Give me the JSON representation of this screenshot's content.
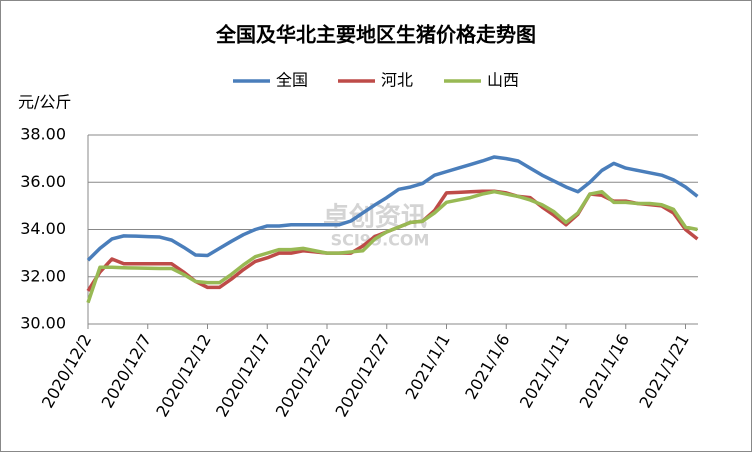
{
  "chart_data": {
    "type": "line",
    "title": "全国及华北主要地区生猪价格走势图",
    "ylabel": "元/公斤",
    "watermark": [
      "卓创资讯",
      "SCI99.COM"
    ],
    "categories": [
      "2020/12/2",
      null,
      null,
      null,
      null,
      "2020/12/7",
      null,
      null,
      null,
      null,
      "2020/12/12",
      null,
      null,
      null,
      null,
      "2020/12/17",
      null,
      null,
      null,
      null,
      "2020/12/22",
      null,
      null,
      null,
      null,
      "2020/12/27",
      null,
      null,
      null,
      null,
      "2021/1/1",
      null,
      null,
      null,
      null,
      "2021/1/6",
      null,
      null,
      null,
      null,
      "2021/1/11",
      null,
      null,
      null,
      null,
      "2021/1/16",
      null,
      null,
      null,
      null,
      "2021/1/21",
      null
    ],
    "series": [
      {
        "name": "全国",
        "color": "#4a7ebb",
        "values": [
          32.7,
          33.2,
          33.6,
          33.73,
          33.72,
          33.7,
          33.68,
          33.55,
          33.25,
          32.92,
          32.9,
          33.2,
          33.5,
          33.78,
          34.0,
          34.15,
          34.15,
          34.2,
          34.2,
          34.2,
          34.2,
          34.2,
          34.36,
          34.7,
          35.04,
          35.35,
          35.7,
          35.8,
          35.95,
          36.3,
          36.45,
          36.6,
          36.75,
          36.9,
          37.07,
          37.0,
          36.9,
          36.6,
          36.3,
          36.05,
          35.8,
          35.6,
          36.0,
          36.5,
          36.8,
          36.6,
          36.5,
          36.4,
          36.3,
          36.1,
          35.8,
          35.4
        ]
      },
      {
        "name": "河北",
        "color": "#be4b48",
        "values": [
          31.4,
          32.2,
          32.75,
          32.55,
          32.55,
          32.55,
          32.55,
          32.55,
          32.2,
          31.8,
          31.55,
          31.55,
          31.9,
          32.3,
          32.65,
          32.8,
          33.0,
          33.0,
          33.1,
          33.05,
          33.0,
          33.0,
          33.0,
          33.3,
          33.7,
          33.9,
          34.1,
          34.3,
          34.35,
          34.8,
          35.55,
          35.57,
          35.6,
          35.62,
          35.62,
          35.55,
          35.4,
          35.35,
          34.95,
          34.6,
          34.2,
          34.65,
          35.5,
          35.45,
          35.2,
          35.2,
          35.1,
          35.05,
          35.0,
          34.7,
          34.0,
          33.6
        ]
      },
      {
        "name": "山西",
        "color": "#98b954",
        "values": [
          30.9,
          32.4,
          32.4,
          32.38,
          32.37,
          32.36,
          32.35,
          32.35,
          32.1,
          31.8,
          31.75,
          31.75,
          32.1,
          32.5,
          32.85,
          33.0,
          33.15,
          33.15,
          33.2,
          33.1,
          33.0,
          33.0,
          33.05,
          33.1,
          33.6,
          33.9,
          34.1,
          34.3,
          34.35,
          34.7,
          35.15,
          35.25,
          35.35,
          35.5,
          35.6,
          35.5,
          35.4,
          35.25,
          35.05,
          34.75,
          34.3,
          34.7,
          35.5,
          35.6,
          35.15,
          35.15,
          35.1,
          35.1,
          35.05,
          34.85,
          34.1,
          34.0
        ]
      }
    ],
    "ylim": [
      30,
      38
    ],
    "yticks": [
      {
        "value": 30,
        "label": "30.00"
      },
      {
        "value": 32,
        "label": "32.00"
      },
      {
        "value": 34,
        "label": "34.00"
      },
      {
        "value": 36,
        "label": "36.00"
      },
      {
        "value": 38,
        "label": "38.00"
      }
    ],
    "grid": true,
    "legend": "top"
  }
}
